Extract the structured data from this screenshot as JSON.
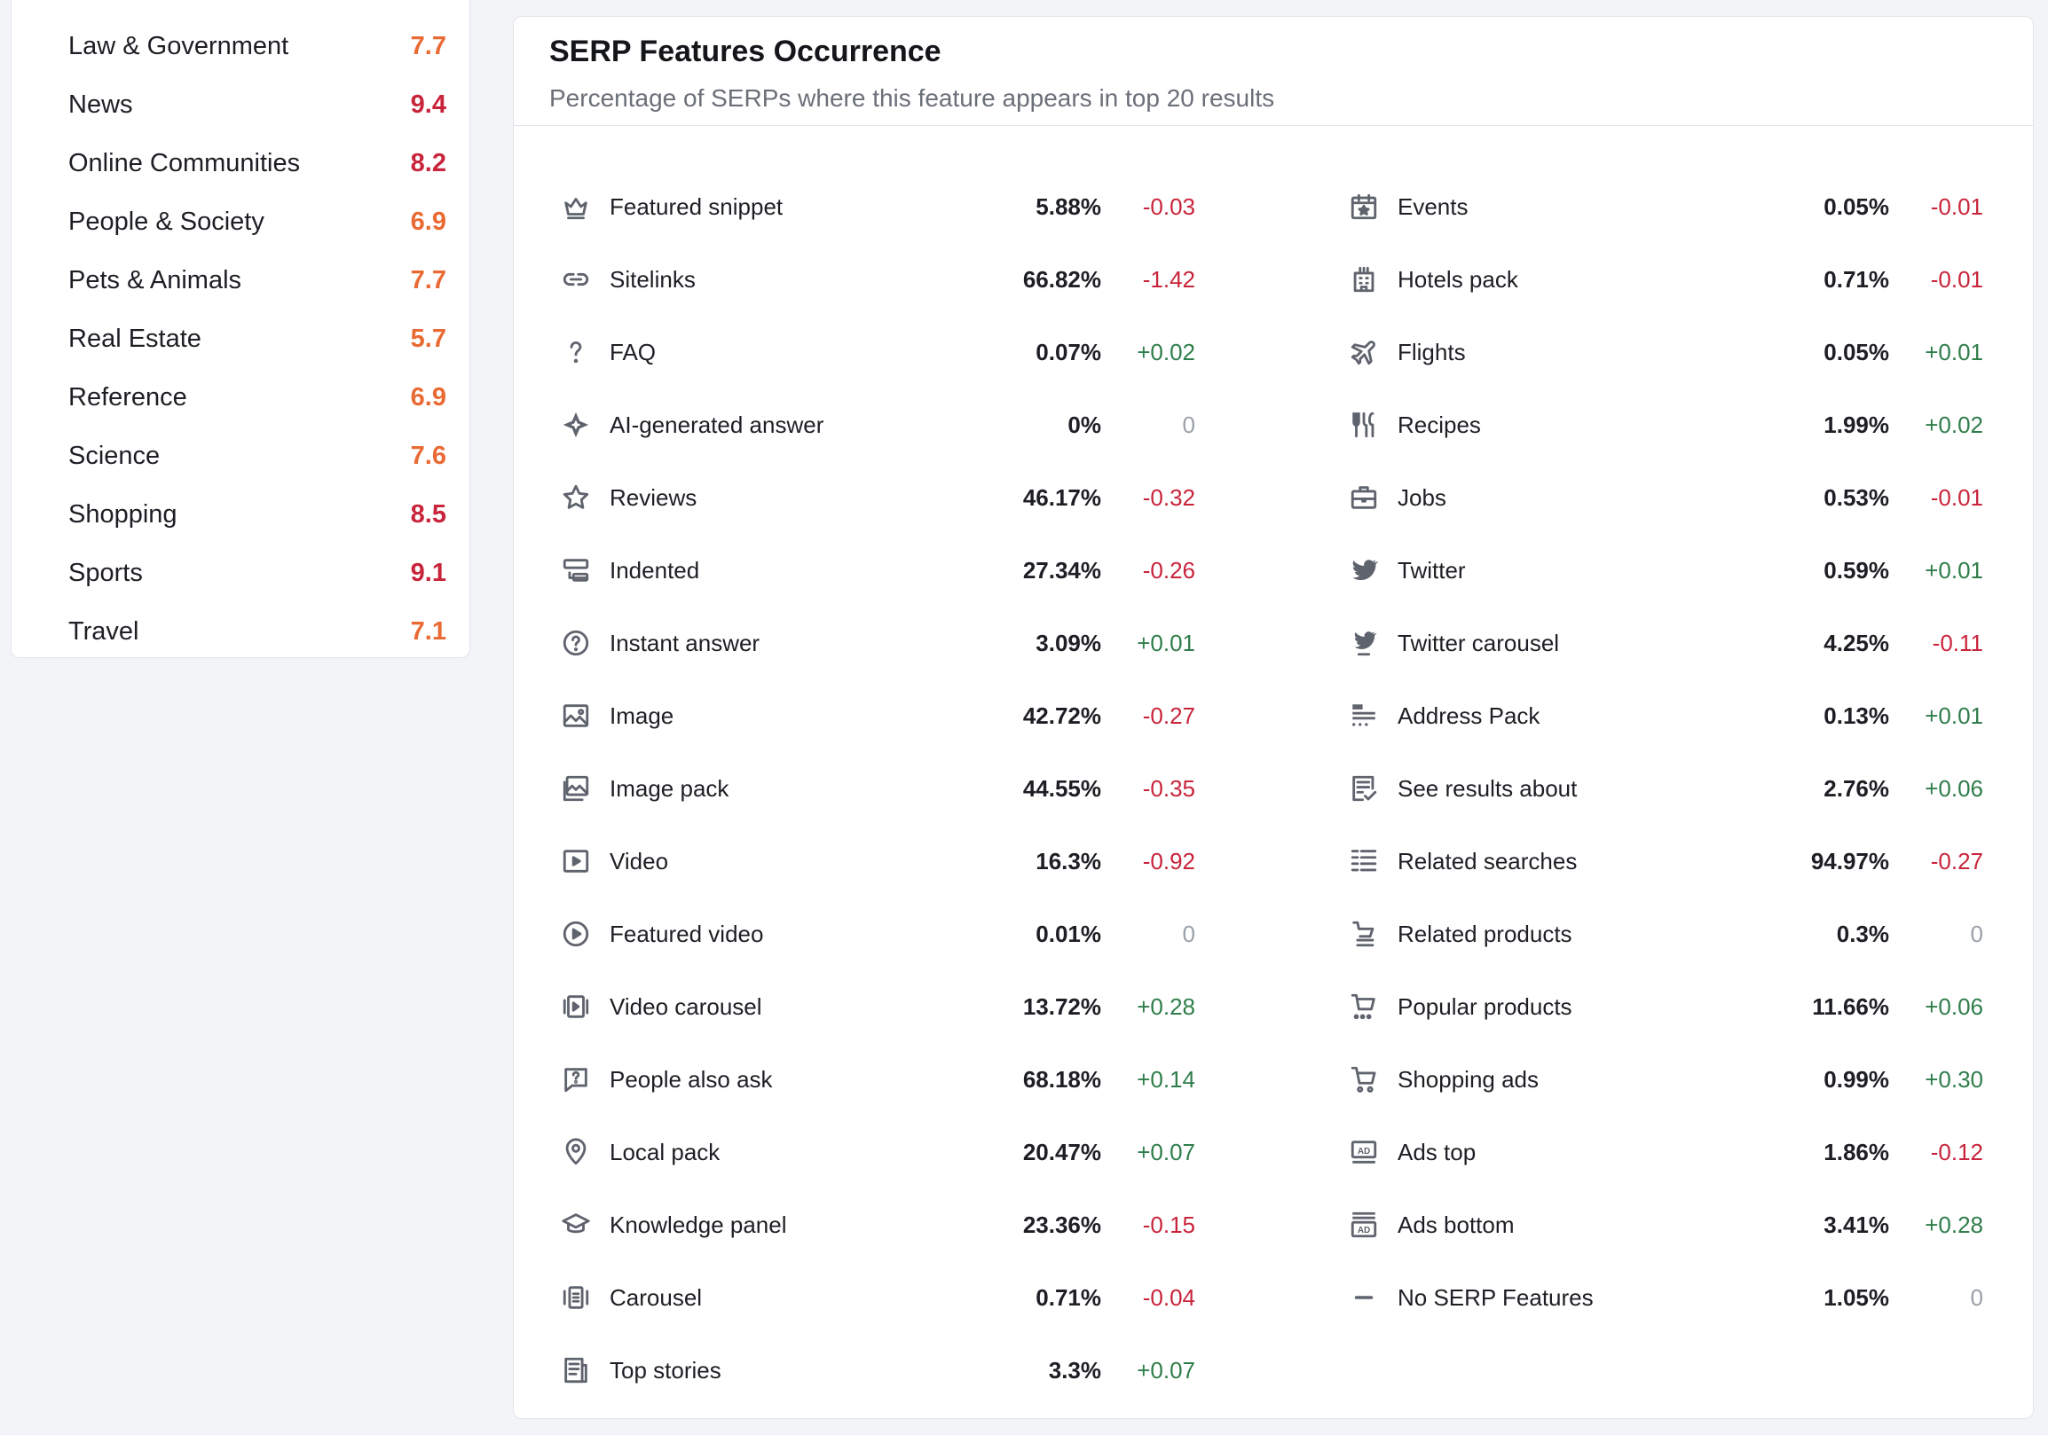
{
  "colors": {
    "score_high": "#c8243b",
    "score_mid": "#ea6a34",
    "diff_negative": "#c8243b",
    "diff_positive": "#2f7d4a",
    "diff_zero": "#9aa0a8"
  },
  "categories": [
    {
      "name": "Law & Government",
      "score": "7.7",
      "level": "mid"
    },
    {
      "name": "News",
      "score": "9.4",
      "level": "high"
    },
    {
      "name": "Online Communities",
      "score": "8.2",
      "level": "high"
    },
    {
      "name": "People & Society",
      "score": "6.9",
      "level": "mid"
    },
    {
      "name": "Pets & Animals",
      "score": "7.7",
      "level": "mid"
    },
    {
      "name": "Real Estate",
      "score": "5.7",
      "level": "mid"
    },
    {
      "name": "Reference",
      "score": "6.9",
      "level": "mid"
    },
    {
      "name": "Science",
      "score": "7.6",
      "level": "mid"
    },
    {
      "name": "Shopping",
      "score": "8.5",
      "level": "high"
    },
    {
      "name": "Sports",
      "score": "9.1",
      "level": "high"
    },
    {
      "name": "Travel",
      "score": "7.1",
      "level": "mid"
    }
  ],
  "serp": {
    "title": "SERP Features Occurrence",
    "subtitle": "Percentage of SERPs where this feature appears in top 20 results",
    "left_features": [
      {
        "label": "Featured snippet",
        "pct": "5.88%",
        "diff": "-0.03",
        "icon": "crown-icon"
      },
      {
        "label": "Sitelinks",
        "pct": "66.82%",
        "diff": "-1.42",
        "icon": "link-icon"
      },
      {
        "label": "FAQ",
        "pct": "0.07%",
        "diff": "+0.02",
        "icon": "question-icon"
      },
      {
        "label": "AI-generated answer",
        "pct": "0%",
        "diff": "0",
        "icon": "ai-sparkle-icon"
      },
      {
        "label": "Reviews",
        "pct": "46.17%",
        "diff": "-0.32",
        "icon": "star-icon"
      },
      {
        "label": "Indented",
        "pct": "27.34%",
        "diff": "-0.26",
        "icon": "indented-icon"
      },
      {
        "label": "Instant answer",
        "pct": "3.09%",
        "diff": "+0.01",
        "icon": "question-circle-icon"
      },
      {
        "label": "Image",
        "pct": "42.72%",
        "diff": "-0.27",
        "icon": "image-icon"
      },
      {
        "label": "Image pack",
        "pct": "44.55%",
        "diff": "-0.35",
        "icon": "image-pack-icon"
      },
      {
        "label": "Video",
        "pct": "16.3%",
        "diff": "-0.92",
        "icon": "video-icon"
      },
      {
        "label": "Featured video",
        "pct": "0.01%",
        "diff": "0",
        "icon": "play-circle-icon"
      },
      {
        "label": "Video carousel",
        "pct": "13.72%",
        "diff": "+0.28",
        "icon": "video-carousel-icon"
      },
      {
        "label": "People also ask",
        "pct": "68.18%",
        "diff": "+0.14",
        "icon": "ask-bubble-icon"
      },
      {
        "label": "Local pack",
        "pct": "20.47%",
        "diff": "+0.07",
        "icon": "map-pin-icon"
      },
      {
        "label": "Knowledge panel",
        "pct": "23.36%",
        "diff": "-0.15",
        "icon": "graduation-cap-icon"
      },
      {
        "label": "Carousel",
        "pct": "0.71%",
        "diff": "-0.04",
        "icon": "carousel-icon"
      },
      {
        "label": "Top stories",
        "pct": "3.3%",
        "diff": "+0.07",
        "icon": "newspaper-icon"
      }
    ],
    "right_features": [
      {
        "label": "Events",
        "pct": "0.05%",
        "diff": "-0.01",
        "icon": "calendar-star-icon"
      },
      {
        "label": "Hotels pack",
        "pct": "0.71%",
        "diff": "-0.01",
        "icon": "hotel-icon"
      },
      {
        "label": "Flights",
        "pct": "0.05%",
        "diff": "+0.01",
        "icon": "plane-icon"
      },
      {
        "label": "Recipes",
        "pct": "1.99%",
        "diff": "+0.02",
        "icon": "fork-knife-icon"
      },
      {
        "label": "Jobs",
        "pct": "0.53%",
        "diff": "-0.01",
        "icon": "briefcase-icon"
      },
      {
        "label": "Twitter",
        "pct": "0.59%",
        "diff": "+0.01",
        "icon": "twitter-bird-icon"
      },
      {
        "label": "Twitter carousel",
        "pct": "4.25%",
        "diff": "-0.11",
        "icon": "twitter-carousel-icon"
      },
      {
        "label": "Address Pack",
        "pct": "0.13%",
        "diff": "+0.01",
        "icon": "address-pack-icon"
      },
      {
        "label": "See results about",
        "pct": "2.76%",
        "diff": "+0.06",
        "icon": "checklist-icon"
      },
      {
        "label": "Related searches",
        "pct": "94.97%",
        "diff": "-0.27",
        "icon": "list-icon"
      },
      {
        "label": "Related products",
        "pct": "0.3%",
        "diff": "0",
        "icon": "cart-list-icon"
      },
      {
        "label": "Popular products",
        "pct": "11.66%",
        "diff": "+0.06",
        "icon": "cart-dots-icon"
      },
      {
        "label": "Shopping ads",
        "pct": "0.99%",
        "diff": "+0.30",
        "icon": "shopping-cart-icon"
      },
      {
        "label": "Ads top",
        "pct": "1.86%",
        "diff": "-0.12",
        "icon": "ad-top-icon"
      },
      {
        "label": "Ads bottom",
        "pct": "3.41%",
        "diff": "+0.28",
        "icon": "ad-bottom-icon"
      },
      {
        "label": "No SERP Features",
        "pct": "1.05%",
        "diff": "0",
        "icon": "dash-icon"
      }
    ]
  }
}
